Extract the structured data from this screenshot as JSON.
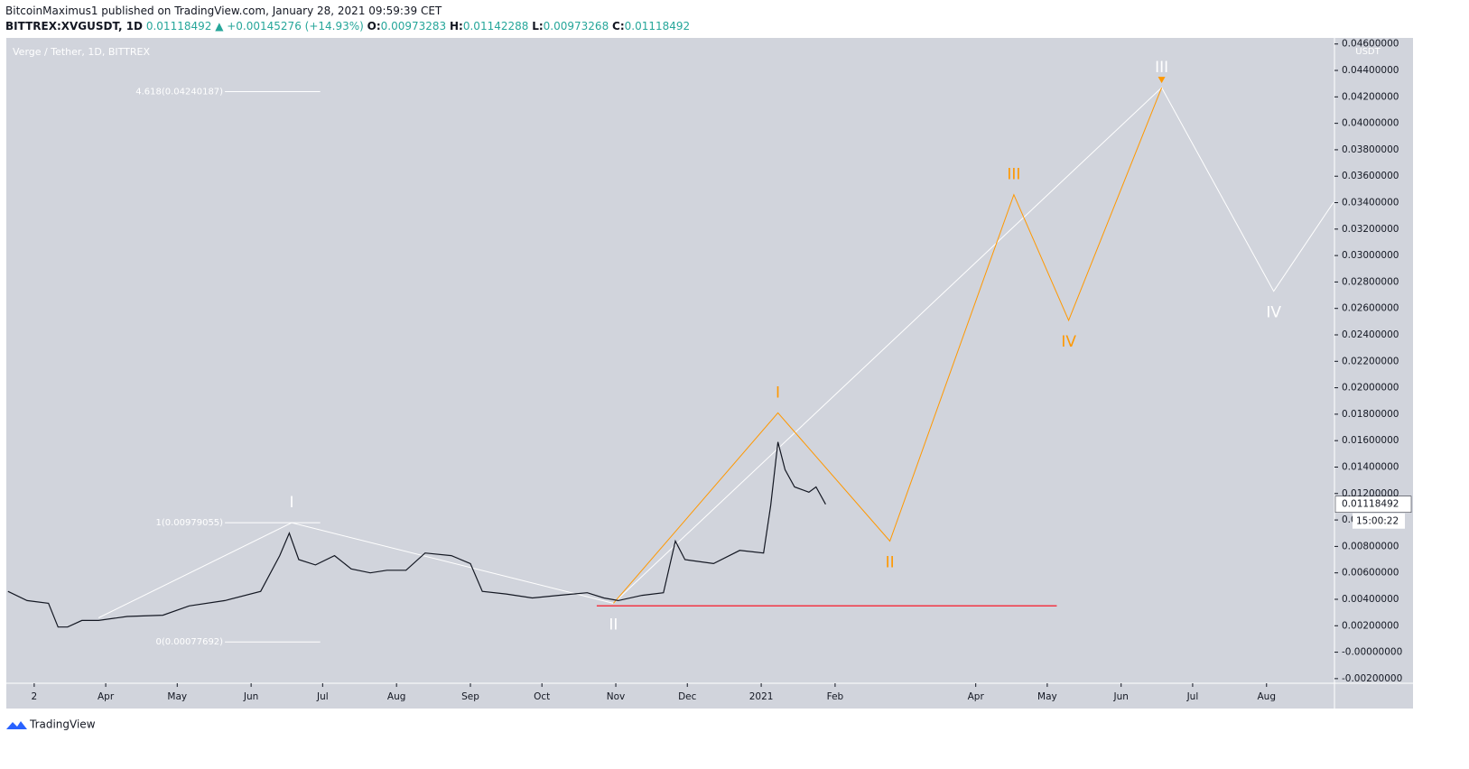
{
  "header": {
    "publisher": "BitcoinMaximus1 published on TradingView.com, January 28, 2021 09:59:39 CET",
    "symbol": "BITTREX:XVGUSDT, 1D",
    "last": "0.01118492",
    "change": "▲ +0.00145276 (+14.93%)",
    "ohlc": [
      {
        "key": "O:",
        "value": "0.00973283"
      },
      {
        "key": "H:",
        "value": "0.01142288"
      },
      {
        "key": "L:",
        "value": "0.00973268"
      },
      {
        "key": "C:",
        "value": "0.01118492"
      }
    ]
  },
  "chart_data": {
    "type": "line",
    "title": "Verge / Tether, 1D, BITTREX",
    "y_unit": "USDT",
    "x": [
      -11,
      -3,
      6,
      10,
      14,
      20,
      27,
      39,
      54,
      65,
      80,
      95,
      103,
      107,
      111,
      118,
      126,
      133,
      141,
      148,
      156,
      164,
      175,
      183,
      188,
      198,
      209,
      220,
      232,
      239,
      245,
      255,
      264,
      269,
      273,
      285,
      296,
      306,
      309,
      312,
      315,
      319,
      325,
      328,
      332
    ],
    "series": [
      {
        "color": "#131722",
        "values": [
          0.0046,
          0.0039,
          0.0037,
          0.0019,
          0.0019,
          0.0024,
          0.0024,
          0.0027,
          0.0028,
          0.0035,
          0.0039,
          0.0046,
          0.0073,
          0.009,
          0.007,
          0.0066,
          0.0073,
          0.0063,
          0.006,
          0.0062,
          0.0062,
          0.0075,
          0.0073,
          0.0067,
          0.0046,
          0.0044,
          0.0041,
          0.0043,
          0.0045,
          0.0041,
          0.0039,
          0.0043,
          0.0045,
          0.0084,
          0.007,
          0.0067,
          0.0077,
          0.0075,
          0.0111,
          0.0159,
          0.0138,
          0.0125,
          0.0121,
          0.0125,
          0.01118492
        ]
      }
    ],
    "xlim": [
      -11.7,
      545.5
    ],
    "ylim": [
      -0.00235,
      0.04646
    ],
    "xticks": [
      {
        "value": 0,
        "label": "2"
      },
      {
        "value": 30,
        "label": "Apr"
      },
      {
        "value": 60,
        "label": "May"
      },
      {
        "value": 91,
        "label": "Jun"
      },
      {
        "value": 121,
        "label": "Jul"
      },
      {
        "value": 152,
        "label": "Aug"
      },
      {
        "value": 183,
        "label": "Sep"
      },
      {
        "value": 213,
        "label": "Oct"
      },
      {
        "value": 244,
        "label": "Nov"
      },
      {
        "value": 274,
        "label": "Dec"
      },
      {
        "value": 305,
        "label": "2021"
      },
      {
        "value": 336,
        "label": "Feb"
      },
      {
        "value": 395,
        "label": "Apr"
      },
      {
        "value": 425,
        "label": "May"
      },
      {
        "value": 456,
        "label": "Jun"
      },
      {
        "value": 486,
        "label": "Jul"
      },
      {
        "value": 517,
        "label": "Aug"
      }
    ],
    "yticks": [
      {
        "value": 0.046,
        "label": "0.04600000"
      },
      {
        "value": 0.044,
        "label": "0.04400000"
      },
      {
        "value": 0.042,
        "label": "0.04200000"
      },
      {
        "value": 0.04,
        "label": "0.04000000"
      },
      {
        "value": 0.038,
        "label": "0.03800000"
      },
      {
        "value": 0.036,
        "label": "0.03600000"
      },
      {
        "value": 0.034,
        "label": "0.03400000"
      },
      {
        "value": 0.032,
        "label": "0.03200000"
      },
      {
        "value": 0.03,
        "label": "0.03000000"
      },
      {
        "value": 0.028,
        "label": "0.02800000"
      },
      {
        "value": 0.026,
        "label": "0.02600000"
      },
      {
        "value": 0.024,
        "label": "0.02400000"
      },
      {
        "value": 0.022,
        "label": "0.02200000"
      },
      {
        "value": 0.02,
        "label": "0.02000000"
      },
      {
        "value": 0.018,
        "label": "0.01800000"
      },
      {
        "value": 0.016,
        "label": "0.01600000"
      },
      {
        "value": 0.014,
        "label": "0.01400000"
      },
      {
        "value": 0.012,
        "label": "0.01200000"
      },
      {
        "value": 0.01,
        "label": "0.01000000"
      },
      {
        "value": 0.008,
        "label": "0.00800000"
      },
      {
        "value": 0.006,
        "label": "0.00600000"
      },
      {
        "value": 0.004,
        "label": "0.00400000"
      },
      {
        "value": 0.002,
        "label": "0.00200000"
      },
      {
        "value": 0,
        "label": "-0.00000000"
      },
      {
        "value": -0.002,
        "label": "-0.00200000"
      }
    ],
    "grid": false,
    "background": "#d1d4dc",
    "fib_levels": [
      {
        "value": 0.04240187,
        "label": "4.618(0.04240187)",
        "x": [
          80,
          120
        ]
      },
      {
        "value": 0.00979055,
        "label": "1(0.00979055)",
        "x": [
          80,
          120
        ]
      },
      {
        "value": 0.00077692,
        "label": "0(0.00077692)",
        "x": [
          80,
          120
        ]
      }
    ],
    "waves": [
      {
        "color": "#ffffff",
        "x": [
          27,
          108,
          243,
          473,
          520,
          545
        ],
        "values": [
          0.0026,
          0.00979,
          0.0037,
          0.0427,
          0.0273,
          0.034
        ],
        "labels": [
          null,
          "I",
          "II",
          "III",
          "IV",
          null
        ]
      },
      {
        "color": "#ff9800",
        "x": [
          243,
          312,
          359,
          411,
          434,
          473
        ],
        "values": [
          0.0037,
          0.0181,
          0.0084,
          0.0346,
          0.0251,
          0.0427
        ],
        "labels": [
          null,
          "I",
          "II",
          "III",
          "IV",
          null
        ]
      }
    ],
    "support": {
      "color": "#f23645",
      "value": 0.0035,
      "x": [
        236,
        429
      ]
    },
    "price_tag": {
      "value": 0.01118492,
      "label": "0.01118492"
    },
    "countdown": "15:00:22"
  },
  "footer": "TradingView"
}
